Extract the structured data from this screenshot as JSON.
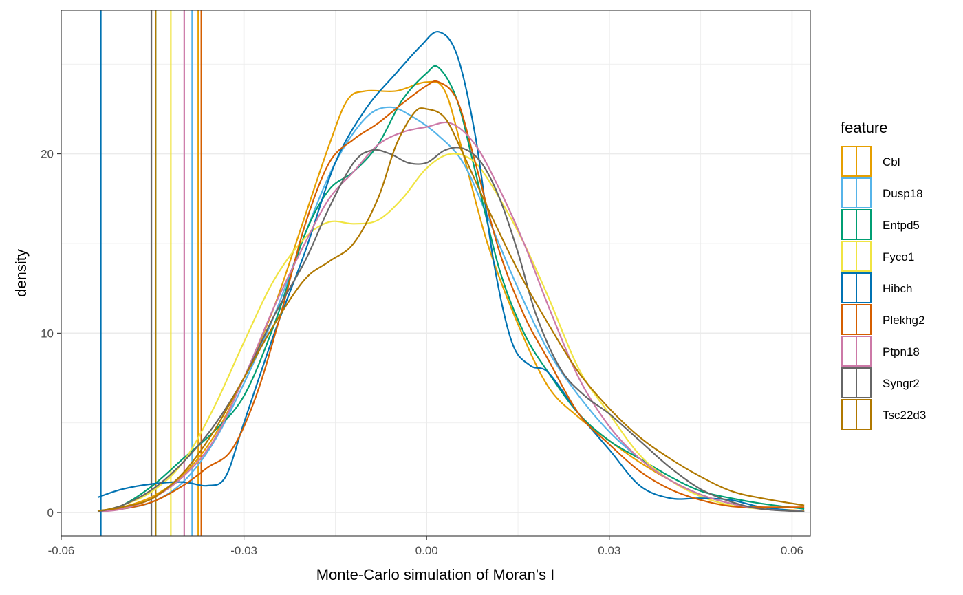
{
  "chart_data": {
    "type": "line",
    "subtype": "density",
    "title": "",
    "xlabel": "Monte-Carlo simulation of Moran's I",
    "ylabel": "density",
    "xlim": [
      -0.06,
      0.063
    ],
    "ylim": [
      -1.3,
      28
    ],
    "x_ticks": [
      -0.06,
      -0.03,
      0.0,
      0.03,
      0.06
    ],
    "x_tick_labels": [
      "-0.06",
      "-0.03",
      "0.00",
      "0.03",
      "0.06"
    ],
    "y_ticks": [
      0,
      10,
      20
    ],
    "y_tick_labels": [
      "0",
      "10",
      "20"
    ],
    "grid": true,
    "legend": {
      "title": "feature",
      "position": "right"
    },
    "series": [
      {
        "name": "Cbl",
        "color": "#E69F00",
        "observed": -0.0375,
        "points": [
          [
            -0.054,
            0.05
          ],
          [
            -0.05,
            0.3
          ],
          [
            -0.045,
            0.9
          ],
          [
            -0.04,
            2.1
          ],
          [
            -0.035,
            4.2
          ],
          [
            -0.03,
            7.5
          ],
          [
            -0.025,
            11.5
          ],
          [
            -0.02,
            16.5
          ],
          [
            -0.016,
            20.5
          ],
          [
            -0.013,
            23.0
          ],
          [
            -0.01,
            23.5
          ],
          [
            -0.005,
            23.5
          ],
          [
            0.0,
            24.0
          ],
          [
            0.003,
            23.5
          ],
          [
            0.006,
            20.0
          ],
          [
            0.01,
            15.0
          ],
          [
            0.015,
            10.5
          ],
          [
            0.02,
            7.0
          ],
          [
            0.025,
            5.3
          ],
          [
            0.03,
            4.0
          ],
          [
            0.035,
            2.8
          ],
          [
            0.04,
            1.8
          ],
          [
            0.045,
            1.0
          ],
          [
            0.05,
            0.5
          ],
          [
            0.055,
            0.25
          ],
          [
            0.062,
            0.1
          ]
        ]
      },
      {
        "name": "Dusp18",
        "color": "#56B4E9",
        "observed": -0.0385,
        "points": [
          [
            -0.054,
            0.05
          ],
          [
            -0.05,
            0.2
          ],
          [
            -0.045,
            0.6
          ],
          [
            -0.04,
            1.7
          ],
          [
            -0.035,
            3.9
          ],
          [
            -0.03,
            7.2
          ],
          [
            -0.025,
            11.0
          ],
          [
            -0.02,
            15.5
          ],
          [
            -0.015,
            19.5
          ],
          [
            -0.01,
            22.0
          ],
          [
            -0.006,
            22.6
          ],
          [
            -0.002,
            22.0
          ],
          [
            0.002,
            21.0
          ],
          [
            0.006,
            19.5
          ],
          [
            0.01,
            16.5
          ],
          [
            0.015,
            12.5
          ],
          [
            0.02,
            9.0
          ],
          [
            0.025,
            6.5
          ],
          [
            0.03,
            4.5
          ],
          [
            0.035,
            3.0
          ],
          [
            0.04,
            1.8
          ],
          [
            0.045,
            1.0
          ],
          [
            0.05,
            0.5
          ],
          [
            0.055,
            0.2
          ],
          [
            0.062,
            0.05
          ]
        ]
      },
      {
        "name": "Entpd5",
        "color": "#009E73",
        "observed": -0.0445,
        "points": [
          [
            -0.054,
            0.05
          ],
          [
            -0.05,
            0.4
          ],
          [
            -0.045,
            1.5
          ],
          [
            -0.04,
            3.0
          ],
          [
            -0.035,
            4.5
          ],
          [
            -0.03,
            6.5
          ],
          [
            -0.025,
            10.5
          ],
          [
            -0.02,
            15.5
          ],
          [
            -0.016,
            18.0
          ],
          [
            -0.012,
            19.0
          ],
          [
            -0.008,
            20.5
          ],
          [
            -0.004,
            23.0
          ],
          [
            0.0,
            24.5
          ],
          [
            0.002,
            24.8
          ],
          [
            0.005,
            23.0
          ],
          [
            0.008,
            19.0
          ],
          [
            0.012,
            13.5
          ],
          [
            0.016,
            10.0
          ],
          [
            0.02,
            7.8
          ],
          [
            0.025,
            5.5
          ],
          [
            0.03,
            4.0
          ],
          [
            0.035,
            3.0
          ],
          [
            0.04,
            2.0
          ],
          [
            0.045,
            1.2
          ],
          [
            0.05,
            0.8
          ],
          [
            0.055,
            0.5
          ],
          [
            0.062,
            0.2
          ]
        ]
      },
      {
        "name": "Fyco1",
        "color": "#F0E442",
        "observed": -0.042,
        "points": [
          [
            -0.054,
            0.05
          ],
          [
            -0.05,
            0.4
          ],
          [
            -0.045,
            1.2
          ],
          [
            -0.04,
            2.8
          ],
          [
            -0.035,
            5.8
          ],
          [
            -0.03,
            9.5
          ],
          [
            -0.025,
            13.0
          ],
          [
            -0.02,
            15.3
          ],
          [
            -0.016,
            16.2
          ],
          [
            -0.012,
            16.1
          ],
          [
            -0.008,
            16.3
          ],
          [
            -0.004,
            17.5
          ],
          [
            0.0,
            19.2
          ],
          [
            0.004,
            20.0
          ],
          [
            0.008,
            19.5
          ],
          [
            0.012,
            17.5
          ],
          [
            0.016,
            15.0
          ],
          [
            0.02,
            12.0
          ],
          [
            0.025,
            8.0
          ],
          [
            0.03,
            5.5
          ],
          [
            0.035,
            3.2
          ],
          [
            0.04,
            1.8
          ],
          [
            0.045,
            0.9
          ],
          [
            0.05,
            0.4
          ],
          [
            0.055,
            0.2
          ],
          [
            0.062,
            0.05
          ]
        ]
      },
      {
        "name": "Hibch",
        "color": "#0072B2",
        "observed": -0.0535,
        "points": [
          [
            -0.054,
            0.85
          ],
          [
            -0.05,
            1.3
          ],
          [
            -0.045,
            1.6
          ],
          [
            -0.04,
            1.7
          ],
          [
            -0.036,
            1.5
          ],
          [
            -0.033,
            2.0
          ],
          [
            -0.03,
            5.0
          ],
          [
            -0.025,
            10.0
          ],
          [
            -0.02,
            14.5
          ],
          [
            -0.015,
            19.5
          ],
          [
            -0.01,
            22.5
          ],
          [
            -0.005,
            24.5
          ],
          [
            -0.001,
            26.0
          ],
          [
            0.002,
            26.8
          ],
          [
            0.005,
            25.5
          ],
          [
            0.008,
            21.0
          ],
          [
            0.011,
            14.0
          ],
          [
            0.014,
            9.5
          ],
          [
            0.017,
            8.2
          ],
          [
            0.02,
            7.8
          ],
          [
            0.025,
            5.5
          ],
          [
            0.03,
            3.5
          ],
          [
            0.035,
            1.5
          ],
          [
            0.04,
            0.8
          ],
          [
            0.045,
            0.8
          ],
          [
            0.05,
            0.7
          ],
          [
            0.055,
            0.3
          ],
          [
            0.062,
            0.05
          ]
        ]
      },
      {
        "name": "Plekhg2",
        "color": "#D55E00",
        "observed": -0.037,
        "points": [
          [
            -0.054,
            0.05
          ],
          [
            -0.05,
            0.2
          ],
          [
            -0.045,
            0.6
          ],
          [
            -0.04,
            1.5
          ],
          [
            -0.036,
            2.5
          ],
          [
            -0.032,
            3.5
          ],
          [
            -0.028,
            6.5
          ],
          [
            -0.024,
            11.0
          ],
          [
            -0.02,
            16.0
          ],
          [
            -0.016,
            19.5
          ],
          [
            -0.012,
            20.8
          ],
          [
            -0.008,
            21.7
          ],
          [
            -0.004,
            22.8
          ],
          [
            0.0,
            23.8
          ],
          [
            0.002,
            24.0
          ],
          [
            0.005,
            23.0
          ],
          [
            0.008,
            19.5
          ],
          [
            0.012,
            14.5
          ],
          [
            0.016,
            11.0
          ],
          [
            0.02,
            8.5
          ],
          [
            0.025,
            5.5
          ],
          [
            0.03,
            3.8
          ],
          [
            0.035,
            2.3
          ],
          [
            0.04,
            1.3
          ],
          [
            0.045,
            0.7
          ],
          [
            0.05,
            0.35
          ],
          [
            0.055,
            0.3
          ],
          [
            0.062,
            0.3
          ]
        ]
      },
      {
        "name": "Ptpn18",
        "color": "#CC79A7",
        "observed": -0.0398,
        "points": [
          [
            -0.054,
            0.05
          ],
          [
            -0.05,
            0.2
          ],
          [
            -0.045,
            0.8
          ],
          [
            -0.04,
            2.0
          ],
          [
            -0.035,
            4.0
          ],
          [
            -0.03,
            7.5
          ],
          [
            -0.025,
            11.5
          ],
          [
            -0.02,
            15.0
          ],
          [
            -0.016,
            17.5
          ],
          [
            -0.012,
            19.0
          ],
          [
            -0.008,
            20.5
          ],
          [
            -0.004,
            21.2
          ],
          [
            0.0,
            21.5
          ],
          [
            0.004,
            21.7
          ],
          [
            0.008,
            20.5
          ],
          [
            0.012,
            18.0
          ],
          [
            0.016,
            15.0
          ],
          [
            0.02,
            11.5
          ],
          [
            0.025,
            7.5
          ],
          [
            0.03,
            4.8
          ],
          [
            0.035,
            3.0
          ],
          [
            0.04,
            1.8
          ],
          [
            0.045,
            1.0
          ],
          [
            0.05,
            0.5
          ],
          [
            0.055,
            0.2
          ],
          [
            0.062,
            0.05
          ]
        ]
      },
      {
        "name": "Syngr2",
        "color": "#666666",
        "observed": -0.0452,
        "points": [
          [
            -0.054,
            0.05
          ],
          [
            -0.05,
            0.4
          ],
          [
            -0.045,
            1.3
          ],
          [
            -0.04,
            2.8
          ],
          [
            -0.035,
            4.8
          ],
          [
            -0.03,
            7.5
          ],
          [
            -0.025,
            11.0
          ],
          [
            -0.02,
            14.0
          ],
          [
            -0.016,
            17.0
          ],
          [
            -0.012,
            19.5
          ],
          [
            -0.009,
            20.2
          ],
          [
            -0.006,
            20.0
          ],
          [
            -0.003,
            19.5
          ],
          [
            0.0,
            19.5
          ],
          [
            0.003,
            20.2
          ],
          [
            0.006,
            20.3
          ],
          [
            0.009,
            19.5
          ],
          [
            0.012,
            17.5
          ],
          [
            0.015,
            14.5
          ],
          [
            0.018,
            11.0
          ],
          [
            0.022,
            8.0
          ],
          [
            0.026,
            6.5
          ],
          [
            0.03,
            5.5
          ],
          [
            0.035,
            4.0
          ],
          [
            0.04,
            2.5
          ],
          [
            0.045,
            1.3
          ],
          [
            0.05,
            0.6
          ],
          [
            0.055,
            0.2
          ],
          [
            0.062,
            0.05
          ]
        ]
      },
      {
        "name": "Tsc22d3",
        "color": "#B07800",
        "observed": -0.0445,
        "points": [
          [
            -0.054,
            0.1
          ],
          [
            -0.05,
            0.3
          ],
          [
            -0.045,
            0.8
          ],
          [
            -0.04,
            2.2
          ],
          [
            -0.035,
            4.5
          ],
          [
            -0.03,
            7.5
          ],
          [
            -0.025,
            10.5
          ],
          [
            -0.02,
            13.0
          ],
          [
            -0.016,
            14.0
          ],
          [
            -0.012,
            15.0
          ],
          [
            -0.008,
            17.5
          ],
          [
            -0.005,
            20.5
          ],
          [
            -0.002,
            22.3
          ],
          [
            0.0,
            22.5
          ],
          [
            0.003,
            22.0
          ],
          [
            0.006,
            20.0
          ],
          [
            0.01,
            17.0
          ],
          [
            0.015,
            13.5
          ],
          [
            0.02,
            10.5
          ],
          [
            0.025,
            7.8
          ],
          [
            0.03,
            5.8
          ],
          [
            0.035,
            4.2
          ],
          [
            0.04,
            3.0
          ],
          [
            0.045,
            2.0
          ],
          [
            0.05,
            1.2
          ],
          [
            0.055,
            0.8
          ],
          [
            0.062,
            0.4
          ]
        ]
      }
    ]
  }
}
